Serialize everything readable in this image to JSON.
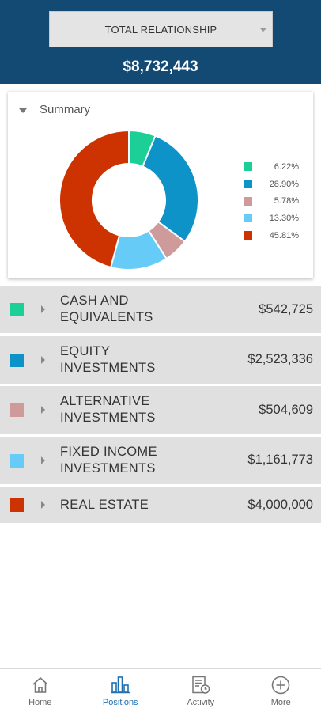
{
  "header": {
    "relationship_select": "TOTAL RELATIONSHIP",
    "total_value": "$8,732,443"
  },
  "summary": {
    "label": "Summary",
    "legend": [
      {
        "color": "#1bcf96",
        "percent": "6.22%"
      },
      {
        "color": "#0e93c8",
        "percent": "28.90%"
      },
      {
        "color": "#cf9a9a",
        "percent": "5.78%"
      },
      {
        "color": "#66ccf7",
        "percent": "13.30%"
      },
      {
        "color": "#cc3300",
        "percent": "45.81%"
      }
    ]
  },
  "chart_data": {
    "type": "pie",
    "variant": "donut",
    "title": "",
    "slices": [
      {
        "label": "CASH AND EQUIVALENTS",
        "value": 6.22,
        "color": "#1bcf96"
      },
      {
        "label": "EQUITY INVESTMENTS",
        "value": 28.9,
        "color": "#0e93c8"
      },
      {
        "label": "ALTERNATIVE INVESTMENTS",
        "value": 5.78,
        "color": "#cf9a9a"
      },
      {
        "label": "FIXED INCOME INVESTMENTS",
        "value": 13.3,
        "color": "#66ccf7"
      },
      {
        "label": "REAL ESTATE",
        "value": 45.81,
        "color": "#cc3300"
      }
    ],
    "legend_position": "right"
  },
  "positions": [
    {
      "line1": "CASH AND",
      "line2": "EQUIVALENTS",
      "amount": "$542,725",
      "color": "#1bcf96"
    },
    {
      "line1": "EQUITY",
      "line2": "INVESTMENTS",
      "amount": "$2,523,336",
      "color": "#0e93c8"
    },
    {
      "line1": "ALTERNATIVE",
      "line2": "INVESTMENTS",
      "amount": "$504,609",
      "color": "#cf9a9a"
    },
    {
      "line1": "FIXED INCOME",
      "line2": "INVESTMENTS",
      "amount": "$1,161,773",
      "color": "#66ccf7"
    },
    {
      "line1": "REAL ESTATE",
      "line2": "",
      "amount": "$4,000,000",
      "color": "#cc3300"
    }
  ],
  "nav": {
    "items": [
      {
        "label": "Home",
        "icon": "home-icon"
      },
      {
        "label": "Positions",
        "icon": "bar-chart-icon"
      },
      {
        "label": "Activity",
        "icon": "activity-icon"
      },
      {
        "label": "More",
        "icon": "plus-circle-icon"
      }
    ],
    "active": "Positions",
    "active_color": "#1d6fb1"
  }
}
